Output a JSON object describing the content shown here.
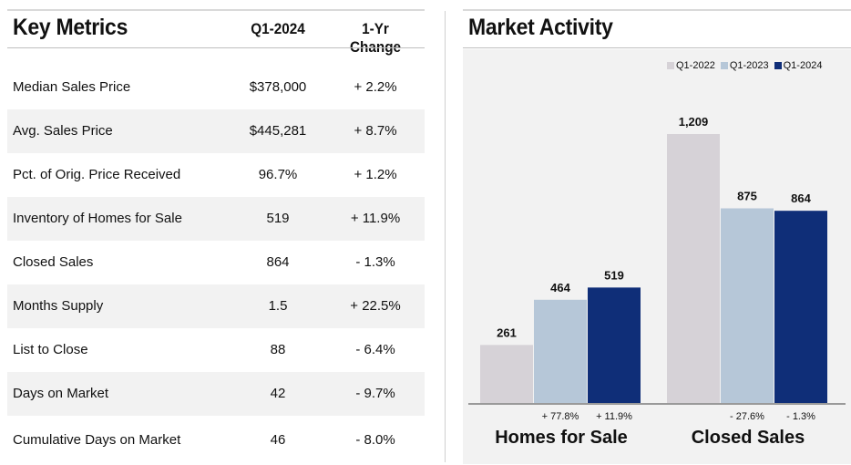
{
  "key_metrics": {
    "title": "Key Metrics",
    "columns": [
      "Q1-2024",
      "1-Yr Change"
    ],
    "rows": [
      {
        "label": "Median Sales Price",
        "value": "$378,000",
        "change": "+ 2.2%"
      },
      {
        "label": "Avg. Sales Price",
        "value": "$445,281",
        "change": "+ 8.7%"
      },
      {
        "label": "Pct. of Orig. Price Received",
        "value": "96.7%",
        "change": "+ 1.2%"
      },
      {
        "label": "Inventory of Homes for Sale",
        "value": "519",
        "change": "+ 11.9%"
      },
      {
        "label": "Closed Sales",
        "value": "864",
        "change": "- 1.3%"
      },
      {
        "label": "Months Supply",
        "value": "1.5",
        "change": "+ 22.5%"
      },
      {
        "label": "List to Close",
        "value": "88",
        "change": "- 6.4%"
      },
      {
        "label": "Days on Market",
        "value": "42",
        "change": "- 9.7%"
      },
      {
        "label": "Cumulative Days on Market",
        "value": "46",
        "change": "- 8.0%"
      }
    ]
  },
  "market_activity": {
    "title": "Market Activity"
  },
  "chart_data": {
    "type": "bar",
    "title": "Market Activity",
    "categories": [
      "Homes for Sale",
      "Closed Sales"
    ],
    "series": [
      {
        "name": "Q1-2022",
        "color": "#d6d2d7",
        "values": [
          261,
          1209
        ],
        "labels": [
          "261",
          "1,209"
        ]
      },
      {
        "name": "Q1-2023",
        "color": "#b6c7d8",
        "values": [
          464,
          875
        ],
        "labels": [
          "464",
          "875"
        ]
      },
      {
        "name": "Q1-2024",
        "color": "#0f2e78",
        "values": [
          519,
          864
        ],
        "labels": [
          "519",
          "864"
        ]
      }
    ],
    "change_labels": [
      [
        "+ 77.8%",
        "+ 11.9%"
      ],
      [
        "- 27.6%",
        "- 1.3%"
      ]
    ],
    "ylim": [
      0,
      1209
    ],
    "legend": "top-right",
    "grid": false
  }
}
